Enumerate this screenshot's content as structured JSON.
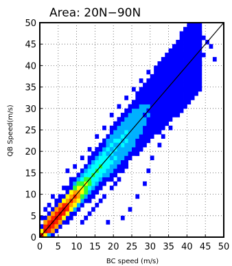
{
  "chart_data": {
    "type": "heatmap",
    "title": "Area:  20N−90N",
    "xlabel": "BC speed (m/s)",
    "ylabel": "QB Speed(m/s)",
    "xlim": [
      0,
      50
    ],
    "ylim": [
      0,
      50
    ],
    "xticks": [
      0,
      5,
      10,
      15,
      20,
      25,
      30,
      35,
      40,
      45,
      50
    ],
    "yticks": [
      0,
      5,
      10,
      15,
      20,
      25,
      30,
      35,
      40,
      45,
      50
    ],
    "grid": true,
    "bin_size": 1,
    "reference_line": {
      "x": [
        0,
        50
      ],
      "y": [
        0,
        50
      ],
      "color": "#000000"
    },
    "colorscale": [
      "#0000ff",
      "#00b0ff",
      "#00ffff",
      "#30ff30",
      "#ffff00",
      "#ffa000",
      "#ff2000",
      "#d80000"
    ],
    "density_model": {
      "description_levels": "level index 0..7 into colorscale; value = count class",
      "core": {
        "center_range": [
          0,
          28
        ],
        "peak_x": 4,
        "spread": 2.6,
        "growth": 0.09
      }
    },
    "bins": [
      [
        1,
        1,
        7
      ],
      [
        2,
        2,
        7
      ],
      [
        3,
        3,
        7
      ],
      [
        4,
        4,
        7
      ],
      [
        5,
        5,
        7
      ],
      [
        6,
        6,
        7
      ],
      [
        7,
        7,
        6
      ],
      [
        8,
        8,
        6
      ],
      [
        9,
        9,
        6
      ],
      [
        10,
        10,
        5
      ],
      [
        2,
        1,
        6
      ],
      [
        1,
        2,
        6
      ],
      [
        3,
        2,
        6
      ],
      [
        2,
        3,
        6
      ],
      [
        4,
        3,
        6
      ],
      [
        3,
        4,
        6
      ],
      [
        5,
        4,
        6
      ],
      [
        4,
        5,
        6
      ],
      [
        6,
        5,
        6
      ],
      [
        5,
        6,
        6
      ],
      [
        7,
        6,
        6
      ],
      [
        6,
        7,
        6
      ],
      [
        8,
        7,
        5
      ],
      [
        7,
        8,
        5
      ],
      [
        9,
        8,
        5
      ],
      [
        8,
        9,
        5
      ],
      [
        10,
        9,
        5
      ],
      [
        9,
        10,
        5
      ],
      [
        11,
        10,
        4
      ],
      [
        10,
        11,
        4
      ],
      [
        11,
        11,
        4
      ],
      [
        12,
        12,
        4
      ],
      [
        13,
        13,
        3
      ],
      [
        14,
        14,
        3
      ],
      [
        15,
        15,
        3
      ],
      [
        16,
        16,
        3
      ],
      [
        17,
        17,
        2
      ],
      [
        18,
        18,
        2
      ],
      [
        19,
        19,
        2
      ],
      [
        20,
        20,
        2
      ],
      [
        3,
        1,
        5
      ],
      [
        1,
        3,
        5
      ],
      [
        4,
        2,
        5
      ],
      [
        2,
        4,
        5
      ],
      [
        5,
        3,
        5
      ],
      [
        3,
        5,
        5
      ],
      [
        6,
        4,
        4
      ],
      [
        4,
        6,
        5
      ],
      [
        7,
        5,
        4
      ],
      [
        5,
        7,
        5
      ],
      [
        8,
        6,
        4
      ],
      [
        6,
        8,
        4
      ],
      [
        9,
        7,
        4
      ],
      [
        7,
        9,
        4
      ],
      [
        10,
        8,
        4
      ],
      [
        8,
        10,
        4
      ],
      [
        11,
        9,
        3
      ],
      [
        9,
        11,
        3
      ],
      [
        12,
        10,
        3
      ],
      [
        10,
        12,
        3
      ],
      [
        12,
        11,
        3
      ],
      [
        11,
        12,
        3
      ],
      [
        13,
        12,
        3
      ],
      [
        12,
        13,
        3
      ],
      [
        14,
        13,
        2
      ],
      [
        13,
        14,
        2
      ],
      [
        15,
        14,
        2
      ],
      [
        14,
        15,
        2
      ],
      [
        16,
        15,
        2
      ],
      [
        15,
        16,
        2
      ],
      [
        17,
        16,
        2
      ],
      [
        16,
        17,
        2
      ],
      [
        18,
        17,
        2
      ],
      [
        17,
        18,
        2
      ],
      [
        19,
        18,
        1
      ],
      [
        18,
        19,
        1
      ],
      [
        20,
        19,
        1
      ],
      [
        19,
        20,
        1
      ],
      [
        21,
        20,
        1
      ],
      [
        20,
        21,
        1
      ],
      [
        21,
        21,
        1
      ],
      [
        22,
        22,
        1
      ],
      [
        23,
        23,
        1
      ],
      [
        24,
        24,
        1
      ],
      [
        25,
        25,
        1
      ],
      [
        26,
        26,
        1
      ],
      [
        27,
        27,
        1
      ],
      [
        28,
        28,
        0
      ],
      [
        29,
        29,
        0
      ],
      [
        30,
        30,
        0
      ]
    ],
    "scatter_bins": [
      [
        43,
        47
      ],
      [
        44,
        46
      ],
      [
        45,
        45
      ],
      [
        42,
        44
      ],
      [
        46,
        44
      ],
      [
        41,
        42
      ],
      [
        44,
        42
      ],
      [
        47,
        41
      ],
      [
        40,
        40
      ],
      [
        43,
        40
      ],
      [
        38,
        38
      ],
      [
        40,
        37
      ],
      [
        41,
        38
      ],
      [
        36,
        36
      ],
      [
        38,
        34
      ],
      [
        35,
        33
      ],
      [
        33,
        31
      ],
      [
        31,
        30
      ],
      [
        34,
        30
      ],
      [
        30,
        28
      ],
      [
        32,
        27
      ],
      [
        29,
        26
      ],
      [
        28,
        24
      ],
      [
        31,
        25
      ],
      [
        27,
        22
      ],
      [
        25,
        20
      ],
      [
        26,
        19
      ],
      [
        24,
        18
      ],
      [
        23,
        16
      ],
      [
        22,
        15
      ],
      [
        21,
        13
      ],
      [
        20,
        12
      ],
      [
        19,
        11
      ],
      [
        17,
        9
      ],
      [
        16,
        8
      ],
      [
        15,
        7
      ],
      [
        14,
        6
      ],
      [
        13,
        5
      ],
      [
        12,
        4
      ],
      [
        11,
        3
      ],
      [
        18,
        3
      ],
      [
        22,
        4
      ],
      [
        24,
        6
      ],
      [
        26,
        9
      ],
      [
        28,
        12
      ],
      [
        29,
        15
      ],
      [
        30,
        18
      ],
      [
        32,
        21
      ],
      [
        33,
        23
      ],
      [
        35,
        25
      ],
      [
        37,
        28
      ],
      [
        39,
        31
      ],
      [
        40,
        33
      ],
      [
        42,
        35
      ],
      [
        36,
        40
      ],
      [
        39,
        42
      ],
      [
        34,
        37
      ],
      [
        32,
        35
      ],
      [
        30,
        33
      ],
      [
        28,
        31
      ],
      [
        26,
        29
      ],
      [
        24,
        27
      ],
      [
        22,
        26
      ],
      [
        20,
        24
      ],
      [
        18,
        22
      ],
      [
        16,
        20
      ],
      [
        14,
        18
      ],
      [
        12,
        16
      ],
      [
        10,
        14
      ],
      [
        8,
        13
      ],
      [
        6,
        11
      ],
      [
        5,
        9
      ],
      [
        4,
        8
      ],
      [
        9,
        16
      ],
      [
        7,
        15
      ],
      [
        11,
        18
      ],
      [
        13,
        20
      ],
      [
        15,
        23
      ],
      [
        17,
        25
      ],
      [
        19,
        28
      ],
      [
        21,
        30
      ],
      [
        23,
        32
      ],
      [
        25,
        34
      ],
      [
        27,
        36
      ],
      [
        29,
        38
      ],
      [
        31,
        39
      ],
      [
        2,
        7
      ],
      [
        3,
        9
      ],
      [
        1,
        6
      ],
      [
        0,
        4
      ]
    ]
  }
}
